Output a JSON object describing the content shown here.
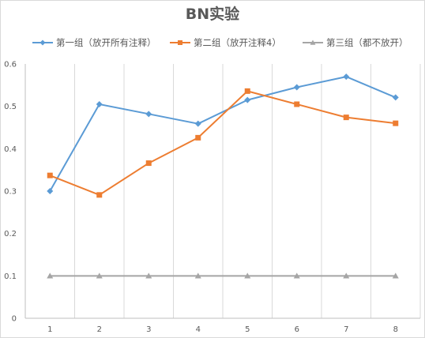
{
  "chart_data": {
    "type": "line",
    "title": "BN实验",
    "xlabel": "",
    "ylabel": "",
    "categories": [
      "1",
      "2",
      "3",
      "4",
      "5",
      "6",
      "7",
      "8"
    ],
    "ylim": [
      0,
      0.6
    ],
    "yticks": [
      "0",
      "0.1",
      "0.2",
      "0.3",
      "0.4",
      "0.5",
      "0.6"
    ],
    "grid": "vertical",
    "legend_position": "top",
    "series": [
      {
        "name": "第一组（放开所有注释）",
        "color": "#5B9BD5",
        "marker": "diamond",
        "values": [
          0.3,
          0.505,
          0.482,
          0.459,
          0.515,
          0.545,
          0.57,
          0.521
        ]
      },
      {
        "name": "第二组（放开注释4）",
        "color": "#ED7D31",
        "marker": "square",
        "values": [
          0.337,
          0.291,
          0.366,
          0.426,
          0.536,
          0.505,
          0.474,
          0.46
        ]
      },
      {
        "name": "第三组（都不放开）",
        "color": "#A5A5A5",
        "marker": "triangle",
        "values": [
          0.1,
          0.1,
          0.1,
          0.1,
          0.1,
          0.1,
          0.1,
          0.1
        ]
      }
    ]
  }
}
